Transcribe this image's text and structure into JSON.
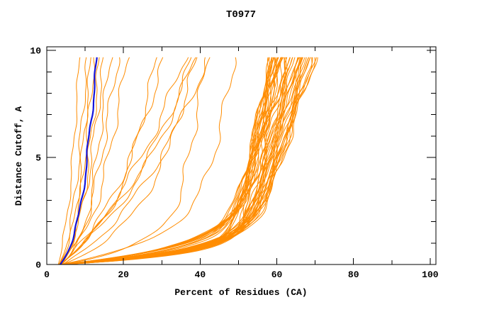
{
  "chart_data": {
    "type": "line",
    "title": "T0977",
    "xlabel": "Percent of Residues (CA)",
    "ylabel": "Distance Cutoff, A",
    "xlim": [
      0,
      101.5
    ],
    "ylim": [
      0,
      10.17
    ],
    "x_major_ticks": [
      0,
      20,
      40,
      60,
      80,
      100
    ],
    "x_minor_ticks": [
      10,
      30,
      50,
      70,
      90
    ],
    "y_major_ticks": [
      0,
      5,
      10
    ],
    "y_minor_ticks": [
      1,
      2,
      3,
      4,
      6,
      7,
      8,
      9
    ],
    "grid": false,
    "legend": "none",
    "curve_max_cutoff": 9.7,
    "curve_start_percent_range": [
      3.0,
      4.4
    ],
    "colors": {
      "model_curve": "#FF8C00",
      "reference_curve": "#1414DC",
      "axis": "#000000",
      "background": "#FFFFFF"
    },
    "curve_formula": "x(y) = start + (top - start - slope*9.7)*(1 - exp(-y/knee)) + slope*y + wiggle",
    "param_order": [
      "start_percent",
      "knee_softness",
      "upper_slope",
      "top_percent_at_9.7",
      "wiggle_amp",
      "wiggle_phase"
    ],
    "reference_curve": {
      "width": 2.2,
      "params": [
        3.5,
        1.3,
        0.55,
        13.2,
        0.25,
        0.8
      ]
    },
    "model_curves": {
      "width": 1,
      "params": [
        [
          3.2,
          1.5,
          0.45,
          10.6,
          0.4,
          0.0
        ],
        [
          3.6,
          1.2,
          0.6,
          13.9,
          0.5,
          1.0
        ],
        [
          3.0,
          2.0,
          0.35,
          8.6,
          0.3,
          2.0
        ],
        [
          3.8,
          1.0,
          0.75,
          16.6,
          0.5,
          3.0
        ],
        [
          3.4,
          1.4,
          0.9,
          18.6,
          0.6,
          4.0
        ],
        [
          3.2,
          0.9,
          0.55,
          12.5,
          0.4,
          5.0
        ],
        [
          3.7,
          1.8,
          0.65,
          15.0,
          0.5,
          0.5
        ],
        [
          3.1,
          1.1,
          0.5,
          11.6,
          0.4,
          1.5
        ],
        [
          3.9,
          1.6,
          1.0,
          21.1,
          0.6,
          2.5
        ],
        [
          3.5,
          2.5,
          1.6,
          31.0,
          0.7,
          0.2
        ],
        [
          4.0,
          1.5,
          1.8,
          39.5,
          0.8,
          1.2
        ],
        [
          3.3,
          4.0,
          1.5,
          40.6,
          0.7,
          2.2
        ],
        [
          3.8,
          5.5,
          1.2,
          40.2,
          0.8,
          3.2
        ],
        [
          3.4,
          1.2,
          1.1,
          49.0,
          0.7,
          4.2
        ],
        [
          4.2,
          3.0,
          2.0,
          42.8,
          0.8,
          5.2
        ],
        [
          3.6,
          6.0,
          0.9,
          44.4,
          0.7,
          0.8
        ],
        [
          3.2,
          2.0,
          1.2,
          28.8,
          0.6,
          1.8
        ],
        [
          4.1,
          0.9,
          1.0,
          41.8,
          0.7,
          2.8
        ],
        [
          3.0,
          0.45,
          1.2,
          58.3,
          0.4,
          0.0
        ],
        [
          3.3,
          0.55,
          1.45,
          63.8,
          0.6,
          0.7
        ],
        [
          3.6,
          0.7,
          1.7,
          67.9,
          0.5,
          1.4
        ],
        [
          3.9,
          0.85,
          1.3,
          60.1,
          0.7,
          2.1
        ],
        [
          4.2,
          0.5,
          1.55,
          65.4,
          0.45,
          2.8
        ],
        [
          4.4,
          0.65,
          1.8,
          69.6,
          0.65,
          3.5
        ],
        [
          3.1,
          0.8,
          1.25,
          59.2,
          0.55,
          4.2
        ],
        [
          3.5,
          0.45,
          1.5,
          62.4,
          0.75,
          4.9
        ],
        [
          3.8,
          0.6,
          1.75,
          66.7,
          0.5,
          5.6
        ],
        [
          4.1,
          0.75,
          1.35,
          61.0,
          0.6,
          6.0
        ],
        [
          3.0,
          0.5,
          1.3,
          59.6,
          0.4,
          0.3
        ],
        [
          3.3,
          0.62,
          1.52,
          64.4,
          0.6,
          1.0
        ],
        [
          3.6,
          0.74,
          1.68,
          68.8,
          0.5,
          1.7
        ],
        [
          3.9,
          0.86,
          1.28,
          61.2,
          0.7,
          2.4
        ],
        [
          4.2,
          0.52,
          1.58,
          66.2,
          0.45,
          3.1
        ],
        [
          4.4,
          0.66,
          1.78,
          70.1,
          0.65,
          3.8
        ],
        [
          3.1,
          0.78,
          1.22,
          58.7,
          0.55,
          4.5
        ],
        [
          3.5,
          0.46,
          1.48,
          63.1,
          0.75,
          5.2
        ],
        [
          3.8,
          0.58,
          1.72,
          67.3,
          0.5,
          5.9
        ],
        [
          4.1,
          0.72,
          1.38,
          60.5,
          0.6,
          0.1
        ],
        [
          3.0,
          0.48,
          1.26,
          58.9,
          0.4,
          0.6
        ],
        [
          3.3,
          0.6,
          1.5,
          64.9,
          0.6,
          1.3
        ],
        [
          3.6,
          0.72,
          1.66,
          68.2,
          0.5,
          2.0
        ],
        [
          3.9,
          0.84,
          1.32,
          60.8,
          0.7,
          2.7
        ],
        [
          4.2,
          0.54,
          1.6,
          65.9,
          0.45,
          3.4
        ],
        [
          4.4,
          0.68,
          1.82,
          69.0,
          0.65,
          4.1
        ],
        [
          3.1,
          0.8,
          1.24,
          59.9,
          0.55,
          4.8
        ],
        [
          3.5,
          0.44,
          1.46,
          62.9,
          0.75,
          5.5
        ],
        [
          3.8,
          0.56,
          1.7,
          66.1,
          0.5,
          6.2
        ],
        [
          4.1,
          0.7,
          1.4,
          61.7,
          0.6,
          0.4
        ],
        [
          3.0,
          0.46,
          1.22,
          59.3,
          0.4,
          0.9
        ],
        [
          3.3,
          0.58,
          1.48,
          63.5,
          0.6,
          1.6
        ],
        [
          3.6,
          0.7,
          1.64,
          68.5,
          0.5,
          2.3
        ],
        [
          3.9,
          0.82,
          1.34,
          60.3,
          0.7,
          3.0
        ],
        [
          4.2,
          0.56,
          1.62,
          65.0,
          0.45,
          3.7
        ],
        [
          4.4,
          0.7,
          1.84,
          69.9,
          0.65,
          4.4
        ],
        [
          3.1,
          0.82,
          1.2,
          58.5,
          0.55,
          5.1
        ],
        [
          3.5,
          0.48,
          1.44,
          62.1,
          0.75,
          5.8
        ],
        [
          3.8,
          0.6,
          1.68,
          67.7,
          0.5,
          0.2
        ],
        [
          4.1,
          0.74,
          1.42,
          61.3,
          0.6,
          0.8
        ],
        [
          3.0,
          0.5,
          1.24,
          59.0,
          0.4,
          1.1
        ],
        [
          3.3,
          0.62,
          1.46,
          64.1,
          0.6,
          1.8
        ],
        [
          3.6,
          0.74,
          1.62,
          68.0,
          0.5,
          2.5
        ],
        [
          3.9,
          0.86,
          1.36,
          60.6,
          0.7,
          3.2
        ],
        [
          4.2,
          0.58,
          1.64,
          65.7,
          0.45,
          3.9
        ],
        [
          4.4,
          0.72,
          1.86,
          69.3,
          0.65,
          4.6
        ],
        [
          3.1,
          0.84,
          1.18,
          58.2,
          0.55,
          5.3
        ],
        [
          3.5,
          0.5,
          1.42,
          63.3,
          0.75,
          6.0
        ],
        [
          3.8,
          0.62,
          1.66,
          66.9,
          0.5,
          0.5
        ],
        [
          4.1,
          0.76,
          1.44,
          61.5,
          0.6,
          1.2
        ]
      ]
    }
  }
}
